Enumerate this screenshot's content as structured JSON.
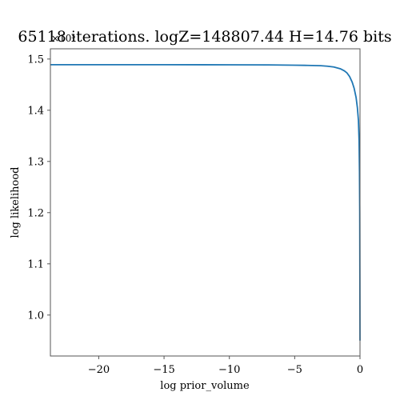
{
  "chart_data": {
    "type": "line",
    "title": "65118 iterations. logZ=148807.44 H=14.76 bits",
    "xlabel": "log prior_volume",
    "ylabel": "log likelihood",
    "y_offset_label": "×10⁵",
    "xlim": [
      -23.7,
      0
    ],
    "ylim": [
      0.92,
      1.52
    ],
    "xticks": [
      -20,
      -15,
      -10,
      -5,
      0
    ],
    "xtick_labels": [
      "−20",
      "−15",
      "−10",
      "−5",
      "0"
    ],
    "yticks": [
      1.0,
      1.1,
      1.2,
      1.3,
      1.4,
      1.5
    ],
    "ytick_labels": [
      "1.0",
      "1.1",
      "1.2",
      "1.3",
      "1.4",
      "1.5"
    ],
    "grid": false,
    "series": [
      {
        "color": "#1f77b4",
        "x": [
          -23.7,
          -20,
          -15,
          -10,
          -7,
          -5,
          -4,
          -3,
          -2.5,
          -2,
          -1.5,
          -1.2,
          -1.0,
          -0.8,
          -0.6,
          -0.45,
          -0.3,
          -0.2,
          -0.12,
          -0.07,
          -0.04,
          -0.02,
          -0.01,
          0
        ],
        "y": [
          1.489,
          1.489,
          1.489,
          1.4888,
          1.4885,
          1.488,
          1.4876,
          1.487,
          1.486,
          1.4845,
          1.481,
          1.477,
          1.473,
          1.466,
          1.455,
          1.443,
          1.425,
          1.405,
          1.38,
          1.34,
          1.28,
          1.2,
          1.08,
          0.95
        ]
      }
    ]
  }
}
